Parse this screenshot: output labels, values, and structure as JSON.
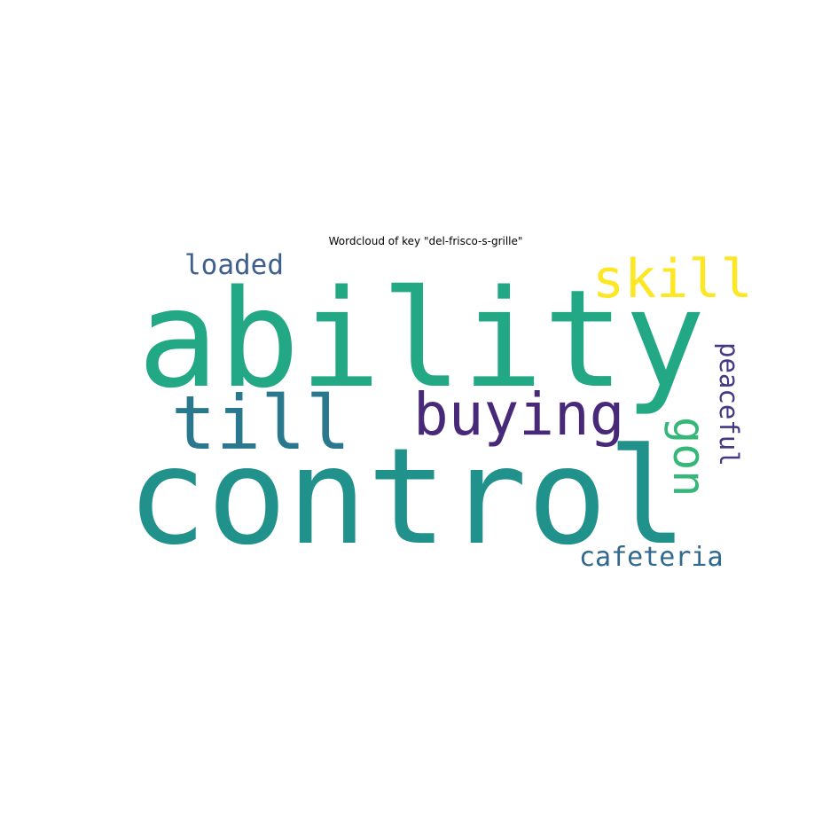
{
  "chart_data": {
    "type": "wordcloud",
    "title": "Wordcloud of key \"del-frisco-s-grille\"",
    "words": [
      {
        "text": "ability",
        "color": "#22a884",
        "weight": 1.0
      },
      {
        "text": "control",
        "color": "#21918c",
        "weight": 1.0
      },
      {
        "text": "till",
        "color": "#2a788e",
        "weight": 0.55
      },
      {
        "text": "buying",
        "color": "#482878",
        "weight": 0.45
      },
      {
        "text": "skill",
        "color": "#fde725",
        "weight": 0.4
      },
      {
        "text": "loaded",
        "color": "#3e5f8e",
        "weight": 0.25
      },
      {
        "text": "gon",
        "color": "#35b779",
        "weight": 0.33
      },
      {
        "text": "peaceful",
        "color": "#443983",
        "weight": 0.25
      },
      {
        "text": "cafeteria",
        "color": "#31688e",
        "weight": 0.25
      }
    ]
  }
}
